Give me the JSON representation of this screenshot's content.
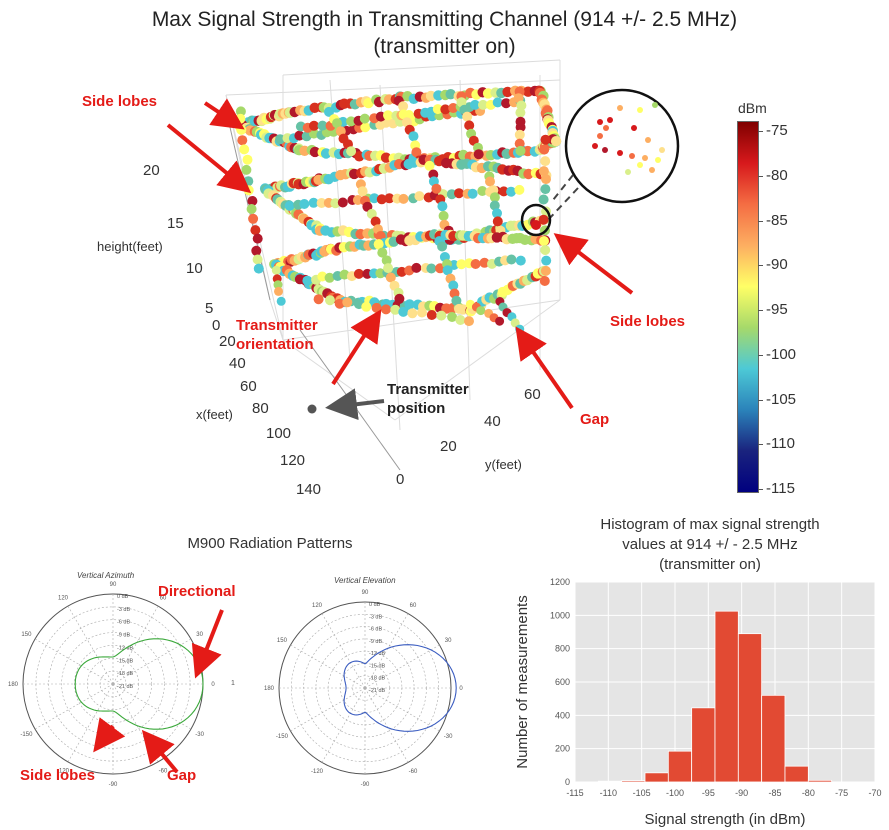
{
  "title_line1": "Max Signal Strength in Transmitting Channel (914 +/- 2.5 MHz)",
  "title_line2": "(transmitter on)",
  "scatter3d": {
    "z_label": "height(feet)",
    "x_label": "x(feet)",
    "y_label": "y(feet)",
    "z_ticks": [
      "20",
      "15",
      "10",
      "5",
      "0"
    ],
    "x_ticks": [
      "20",
      "40",
      "60",
      "80",
      "100",
      "120",
      "140"
    ],
    "y_ticks": [
      "0",
      "20",
      "40",
      "60"
    ],
    "annotations": {
      "side_lobes_top": "Side lobes",
      "side_lobes_right": "Side lobes",
      "transmitter_orientation_1": "Transmitter",
      "transmitter_orientation_2": "orientation",
      "transmitter_position_1": "Transmitter",
      "transmitter_position_2": "position",
      "gap": "Gap"
    }
  },
  "colorbar": {
    "unit": "dBm",
    "ticks": [
      "-75",
      "-80",
      "-85",
      "-90",
      "-95",
      "-100",
      "-105",
      "-110",
      "-115"
    ],
    "colors": [
      "#800000",
      "#d7191c",
      "#f46d43",
      "#fdae61",
      "#ffff66",
      "#a6d96a",
      "#4dc9d6",
      "#2b83ba",
      "#1a237e",
      "#00007f"
    ]
  },
  "polar": {
    "title": "M900 Radiation Patterns",
    "azimuth_title": "Vertical Azimuth",
    "elevation_title": "Vertical Elevation",
    "ring_labels": [
      "0 dB",
      "-3 dB",
      "-6 dB",
      "-9 dB",
      "-12 dB",
      "-15 dB",
      "-18 dB",
      "-21 dB"
    ],
    "angle_labels": [
      "90",
      "60",
      "30",
      "0",
      "-30",
      "-60",
      "-90",
      "-120",
      "-150",
      "180",
      "150",
      "120"
    ],
    "azimuth_color": "#3aa83a",
    "elevation_color": "#3a5cc0",
    "annotations": {
      "directional": "Directional",
      "side_lobes": "Side lobes",
      "gap": "Gap",
      "one": "1"
    }
  },
  "chart_data": {
    "type": "bar",
    "title": "Histogram of  max signal strength values at 914 +/ - 2.5 MHz (transmitter on)",
    "title_lines": [
      "Histogram of  max signal strength",
      "values at 914 +/ - 2.5 MHz",
      "(transmitter on)"
    ],
    "xlabel": "Signal strength (in dBm)",
    "ylabel": "Number of measurements",
    "xlim": [
      -115,
      -70
    ],
    "ylim": [
      0,
      1200
    ],
    "x_ticks": [
      -115,
      -110,
      -105,
      -100,
      -95,
      -90,
      -85,
      -80,
      -75,
      -70
    ],
    "y_ticks": [
      0,
      200,
      400,
      600,
      800,
      1000,
      1200
    ],
    "bins": [
      {
        "x0": -111.5,
        "x1": -108,
        "value": 5
      },
      {
        "x0": -108,
        "x1": -104.5,
        "value": 8
      },
      {
        "x0": -104.5,
        "x1": -101,
        "value": 55
      },
      {
        "x0": -101,
        "x1": -97.5,
        "value": 185
      },
      {
        "x0": -97.5,
        "x1": -94,
        "value": 445
      },
      {
        "x0": -94,
        "x1": -90.5,
        "value": 1025
      },
      {
        "x0": -90.5,
        "x1": -87,
        "value": 890
      },
      {
        "x0": -87,
        "x1": -83.5,
        "value": 520
      },
      {
        "x0": -83.5,
        "x1": -80,
        "value": 95
      },
      {
        "x0": -80,
        "x1": -76.5,
        "value": 10
      }
    ],
    "bar_color": "#e24a33",
    "background": "#e5e5e5",
    "grid": true
  }
}
